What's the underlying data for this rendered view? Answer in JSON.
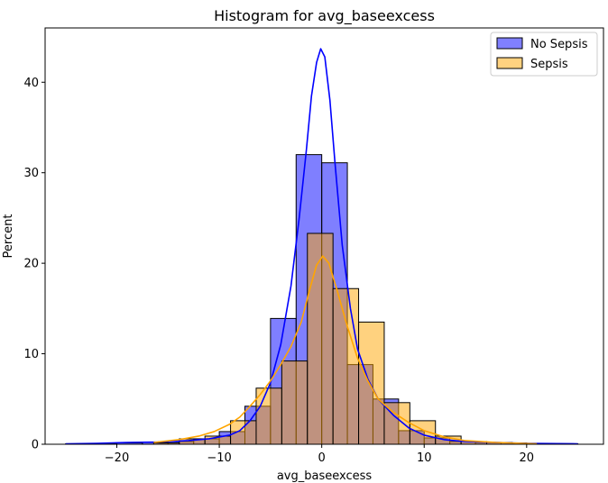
{
  "chart_data": {
    "type": "bar",
    "title": "Histogram for avg_baseexcess",
    "xlabel": "avg_baseexcess",
    "ylabel": "Percent",
    "xlim": [
      -27,
      27.5
    ],
    "ylim": [
      0,
      46
    ],
    "xticks": [
      -20,
      -10,
      0,
      10,
      20
    ],
    "yticks": [
      0,
      10,
      20,
      30,
      40
    ],
    "legend_position": "top-right",
    "grid": false,
    "series": [
      {
        "name": "No Sepsis",
        "color": "#0000ff",
        "bar_color": "#8080ff",
        "bins": [
          {
            "x0": -25.0,
            "x1": -22.5,
            "value": 0.05
          },
          {
            "x0": -22.5,
            "x1": -20.0,
            "value": 0.1
          },
          {
            "x0": -20.0,
            "x1": -17.5,
            "value": 0.15
          },
          {
            "x0": -17.5,
            "x1": -15.0,
            "value": 0.2
          },
          {
            "x0": -15.0,
            "x1": -12.5,
            "value": 0.3
          },
          {
            "x0": -12.5,
            "x1": -10.0,
            "value": 0.6
          },
          {
            "x0": -10.0,
            "x1": -7.5,
            "value": 1.4
          },
          {
            "x0": -7.5,
            "x1": -5.0,
            "value": 4.2
          },
          {
            "x0": -5.0,
            "x1": -2.5,
            "value": 13.9
          },
          {
            "x0": -2.5,
            "x1": 0.0,
            "value": 32.0
          },
          {
            "x0": 0.0,
            "x1": 2.5,
            "value": 31.1
          },
          {
            "x0": 2.5,
            "x1": 5.0,
            "value": 8.8
          },
          {
            "x0": 5.0,
            "x1": 7.5,
            "value": 5.0
          },
          {
            "x0": 7.5,
            "x1": 10.0,
            "value": 1.5
          },
          {
            "x0": 10.0,
            "x1": 12.5,
            "value": 0.7
          },
          {
            "x0": 12.5,
            "x1": 15.0,
            "value": 0.3
          },
          {
            "x0": 15.0,
            "x1": 17.5,
            "value": 0.2
          },
          {
            "x0": 17.5,
            "x1": 20.0,
            "value": 0.15
          },
          {
            "x0": 20.0,
            "x1": 22.5,
            "value": 0.1
          },
          {
            "x0": 22.5,
            "x1": 25.0,
            "value": 0.05
          }
        ],
        "kde": [
          [
            -25,
            0.05
          ],
          [
            -22,
            0.1
          ],
          [
            -19,
            0.2
          ],
          [
            -16,
            0.25
          ],
          [
            -13,
            0.4
          ],
          [
            -11,
            0.6
          ],
          [
            -9,
            1.0
          ],
          [
            -8,
            1.5
          ],
          [
            -7,
            2.6
          ],
          [
            -6,
            4.2
          ],
          [
            -5,
            6.8
          ],
          [
            -4,
            11.0
          ],
          [
            -3,
            17.5
          ],
          [
            -2.2,
            25.0
          ],
          [
            -1.5,
            32.5
          ],
          [
            -1.0,
            38.5
          ],
          [
            -0.5,
            42.2
          ],
          [
            -0.1,
            43.7
          ],
          [
            0.3,
            42.8
          ],
          [
            0.8,
            38.0
          ],
          [
            1.3,
            31.0
          ],
          [
            2.0,
            22.0
          ],
          [
            2.8,
            15.0
          ],
          [
            3.5,
            10.5
          ],
          [
            4.5,
            7.2
          ],
          [
            5.5,
            5.0
          ],
          [
            7.0,
            3.2
          ],
          [
            8.5,
            1.8
          ],
          [
            10,
            1.0
          ],
          [
            12,
            0.5
          ],
          [
            14,
            0.3
          ],
          [
            17,
            0.2
          ],
          [
            20,
            0.1
          ],
          [
            25,
            0.05
          ]
        ]
      },
      {
        "name": "Sepsis",
        "color": "#ffa500",
        "bar_color": "#ffd280",
        "bins": [
          {
            "x0": -16.4,
            "x1": -13.9,
            "value": 0.15
          },
          {
            "x0": -13.9,
            "x1": -11.4,
            "value": 0.6
          },
          {
            "x0": -11.4,
            "x1": -8.9,
            "value": 0.9
          },
          {
            "x0": -8.9,
            "x1": -6.4,
            "value": 2.6
          },
          {
            "x0": -6.4,
            "x1": -3.9,
            "value": 6.2
          },
          {
            "x0": -3.9,
            "x1": -1.4,
            "value": 9.2
          },
          {
            "x0": -1.4,
            "x1": 1.1,
            "value": 23.3
          },
          {
            "x0": 1.1,
            "x1": 3.6,
            "value": 17.2
          },
          {
            "x0": 3.6,
            "x1": 6.1,
            "value": 13.5
          },
          {
            "x0": 6.1,
            "x1": 8.6,
            "value": 4.6
          },
          {
            "x0": 8.6,
            "x1": 11.1,
            "value": 2.6
          },
          {
            "x0": 11.1,
            "x1": 13.6,
            "value": 0.9
          },
          {
            "x0": 13.6,
            "x1": 16.1,
            "value": 0.3
          },
          {
            "x0": 16.1,
            "x1": 18.6,
            "value": 0.2
          },
          {
            "x0": 18.6,
            "x1": 21.1,
            "value": 0.1
          }
        ],
        "kde": [
          [
            -16.4,
            0.2
          ],
          [
            -14,
            0.5
          ],
          [
            -12,
            0.9
          ],
          [
            -10.5,
            1.4
          ],
          [
            -9,
            2.2
          ],
          [
            -8,
            3.0
          ],
          [
            -7,
            4.2
          ],
          [
            -6,
            5.5
          ],
          [
            -5,
            7.0
          ],
          [
            -4,
            8.8
          ],
          [
            -3,
            10.8
          ],
          [
            -2,
            13.5
          ],
          [
            -1.2,
            17.0
          ],
          [
            -0.5,
            19.8
          ],
          [
            0.1,
            20.8
          ],
          [
            0.7,
            20.0
          ],
          [
            1.5,
            17.0
          ],
          [
            2.5,
            13.0
          ],
          [
            3.5,
            9.5
          ],
          [
            4.5,
            7.0
          ],
          [
            5.5,
            5.0
          ],
          [
            7,
            3.5
          ],
          [
            8.5,
            2.4
          ],
          [
            10,
            1.5
          ],
          [
            12,
            0.8
          ],
          [
            14,
            0.4
          ],
          [
            17,
            0.2
          ],
          [
            21,
            0.05
          ]
        ]
      }
    ]
  }
}
